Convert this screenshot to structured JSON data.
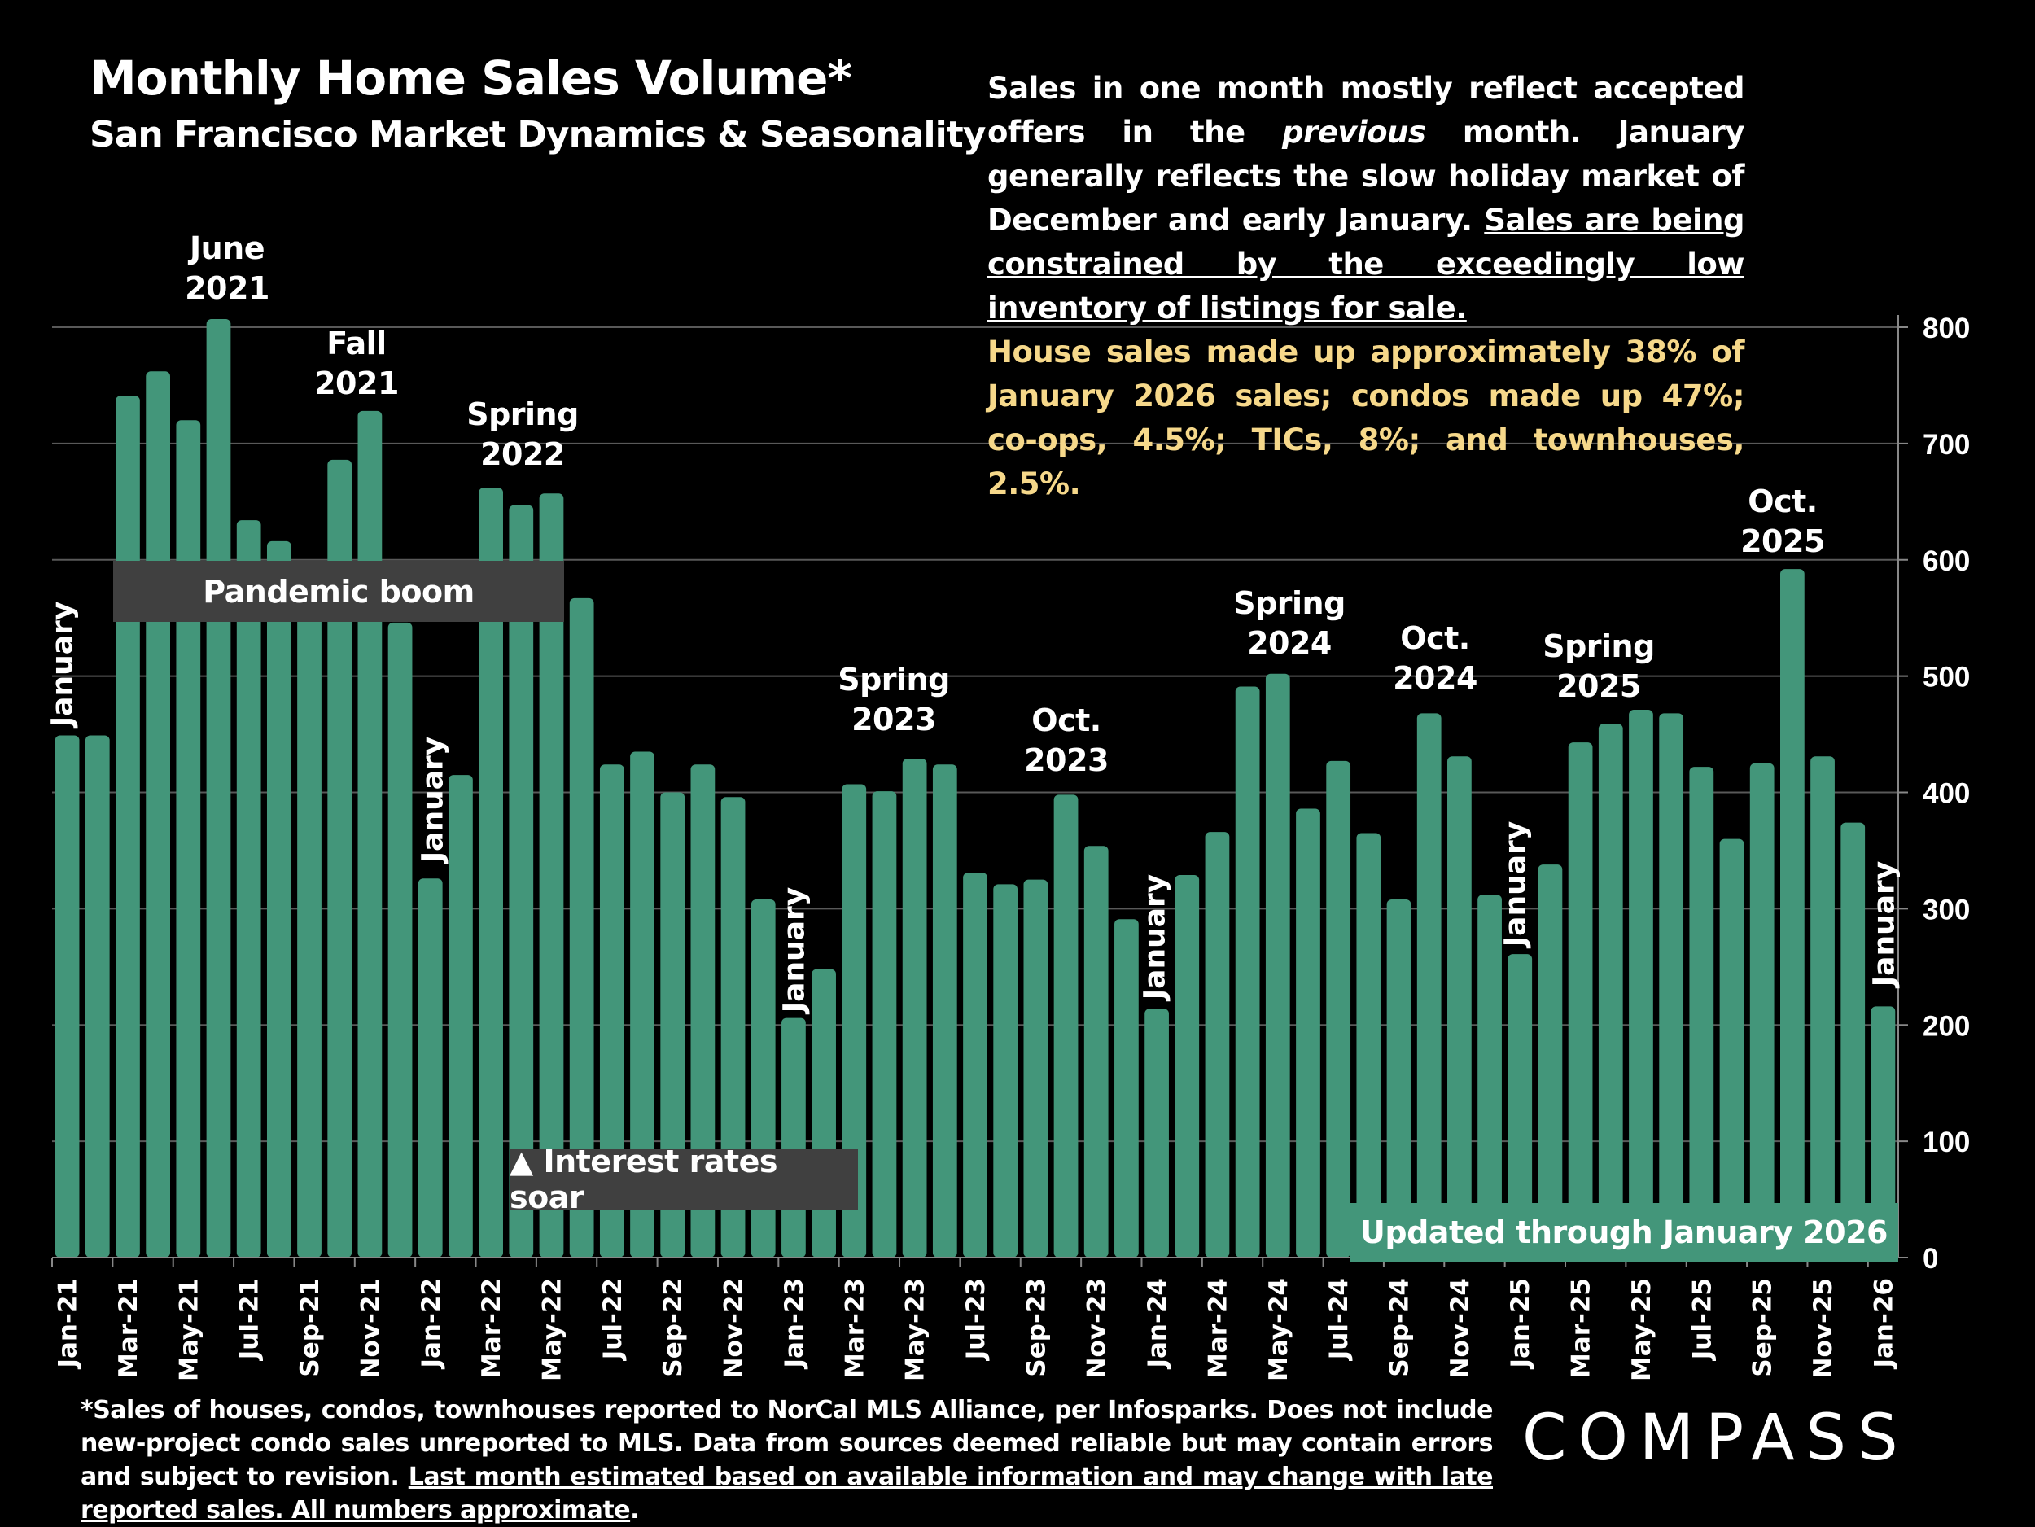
{
  "header": {
    "title": "Monthly Home Sales Volume*",
    "subtitle": "San Francisco Market Dynamics & Seasonality"
  },
  "commentary": {
    "p1_a": "Sales in one month mostly reflect accepted offers in the ",
    "p1_italic": "previous",
    "p1_b": " month. January generally reflects the slow holiday market of December and early January. ",
    "p1_underlined": "Sales are being constrained by the exceedingly low inventory of listings for sale.",
    "p2": "House sales made up approximately 38% of January 2026 sales; condos made up 47%; co-ops, 4.5%; TICs, 8%; and townhouses, 2.5%."
  },
  "annotations": {
    "june_2021": "June\n2021",
    "fall_2021": "Fall\n2021",
    "spring_2022": "Spring\n2022",
    "spring_2023": "Spring\n2023",
    "oct_2023": "Oct.\n2023",
    "spring_2024": "Spring\n2024",
    "oct_2024": "Oct.\n2024",
    "spring_2025": "Spring\n2025",
    "oct_2025": "Oct.\n2025",
    "january": "January",
    "pandemic_boom": "Pandemic boom",
    "interest_rates": "▲ Interest rates soar",
    "updated": "Updated through January 2026"
  },
  "footnote": {
    "text": "*Sales of houses, condos, townhouses reported to NorCal MLS Alliance, per Infosparks. Does not include new-project condo sales unreported to MLS. Data from sources deemed reliable but may contain errors and subject to revision. ",
    "underlined": "Last month estimated based on available information and may change with late reported sales. All numbers approximate",
    "end": "."
  },
  "logo": "COMPASS",
  "colors": {
    "bar": "#43967a",
    "background": "#000000",
    "highlight_text": "#f6d88a",
    "label_box": "#404040"
  },
  "chart_data": {
    "type": "bar",
    "title": "Monthly Home Sales Volume*",
    "subtitle": "San Francisco Market Dynamics & Seasonality",
    "xlabel": "",
    "ylabel": "",
    "ylim": [
      0,
      800
    ],
    "yticks": [
      0,
      100,
      200,
      300,
      400,
      500,
      600,
      700,
      800
    ],
    "y_axis_side": "right",
    "grid": true,
    "categories": [
      "Jan-21",
      "Feb-21",
      "Mar-21",
      "Apr-21",
      "May-21",
      "Jun-21",
      "Jul-21",
      "Aug-21",
      "Sep-21",
      "Oct-21",
      "Nov-21",
      "Dec-21",
      "Jan-22",
      "Feb-22",
      "Mar-22",
      "Apr-22",
      "May-22",
      "Jun-22",
      "Jul-22",
      "Aug-22",
      "Sep-22",
      "Oct-22",
      "Nov-22",
      "Dec-22",
      "Jan-23",
      "Feb-23",
      "Mar-23",
      "Apr-23",
      "May-23",
      "Jun-23",
      "Jul-23",
      "Aug-23",
      "Sep-23",
      "Oct-23",
      "Nov-23",
      "Dec-23",
      "Jan-24",
      "Feb-24",
      "Mar-24",
      "Apr-24",
      "May-24",
      "Jun-24",
      "Jul-24",
      "Aug-24",
      "Sep-24",
      "Oct-24",
      "Nov-24",
      "Dec-24",
      "Jan-25",
      "Feb-25",
      "Mar-25",
      "Apr-25",
      "May-25",
      "Jun-25",
      "Jul-25",
      "Aug-25",
      "Sep-25",
      "Oct-25",
      "Nov-25",
      "Dec-25",
      "Jan-26"
    ],
    "values": [
      449,
      449,
      741,
      762,
      720,
      807,
      634,
      616,
      575,
      686,
      728,
      546,
      326,
      415,
      662,
      647,
      657,
      567,
      424,
      435,
      400,
      424,
      396,
      308,
      206,
      248,
      407,
      401,
      429,
      424,
      331,
      321,
      325,
      398,
      354,
      291,
      214,
      329,
      366,
      491,
      502,
      386,
      427,
      365,
      308,
      468,
      431,
      312,
      261,
      338,
      443,
      459,
      471,
      468,
      422,
      360,
      425,
      592,
      431,
      374,
      216
    ]
  }
}
